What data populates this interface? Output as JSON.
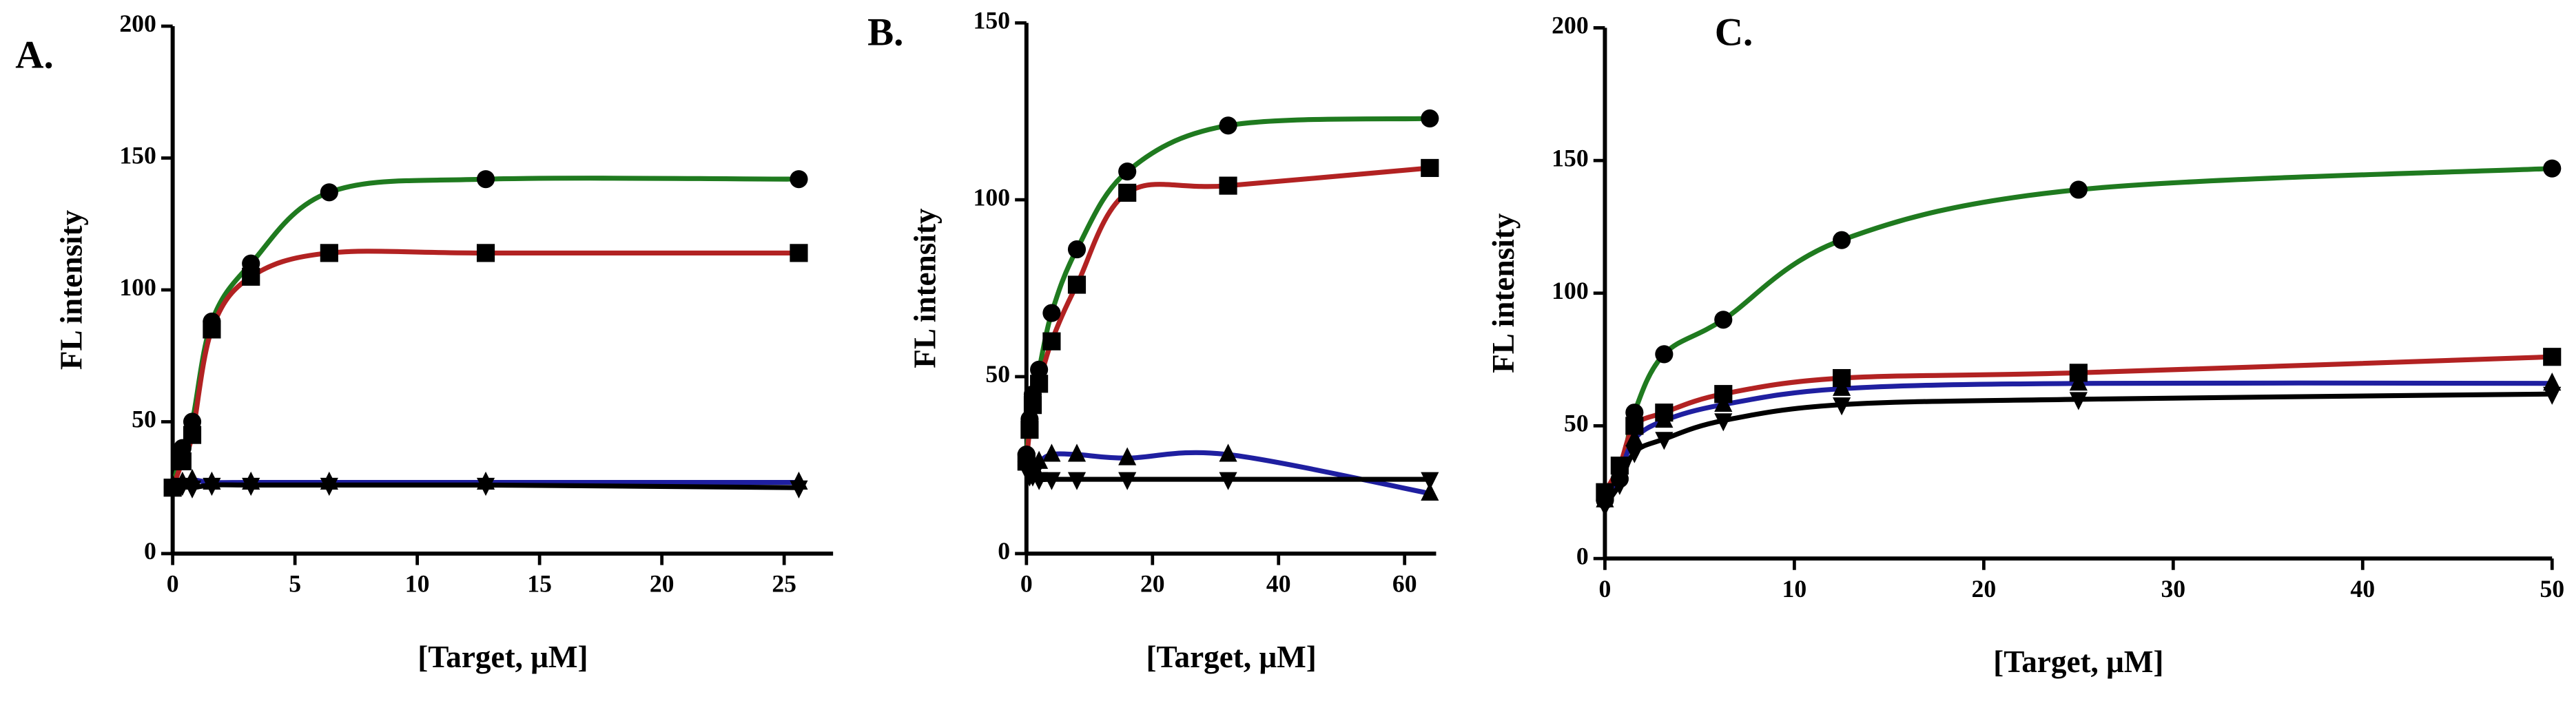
{
  "chart_data": [
    {
      "type": "line",
      "panel_label": "A.",
      "x_label": "[Target, μM]",
      "y_label": "FL intensity",
      "x": [
        0,
        0.4,
        0.8,
        1.6,
        3.2,
        6.4,
        12.8,
        25.6
      ],
      "xlim": [
        0,
        27
      ],
      "xticks": [
        0,
        5,
        10,
        15,
        20,
        25
      ],
      "ylim": [
        0,
        200
      ],
      "yticks": [
        0,
        50,
        100,
        150,
        200
      ],
      "series": [
        {
          "color": "#1f7a1f",
          "marker": "circle",
          "values": [
            25,
            40,
            50,
            88,
            110,
            137,
            142,
            142
          ]
        },
        {
          "color": "#b22222",
          "marker": "square",
          "values": [
            25,
            35,
            45,
            85,
            105,
            114,
            114,
            114
          ]
        },
        {
          "color": "#1f1fa0",
          "marker": "triangle-up",
          "values": [
            26,
            27,
            28,
            27,
            27,
            27,
            27,
            27
          ]
        },
        {
          "color": "#000000",
          "marker": "triangle-down",
          "values": [
            25,
            26,
            25,
            26,
            26,
            26,
            26,
            25
          ]
        }
      ]
    },
    {
      "type": "line",
      "panel_label": "B.",
      "x_label": "[Target, μM]",
      "y_label": "FL intensity",
      "x": [
        0,
        0.5,
        1,
        2,
        4,
        8,
        16,
        32,
        64
      ],
      "xlim": [
        0,
        65
      ],
      "xticks": [
        0,
        20,
        40,
        60
      ],
      "ylim": [
        0,
        150
      ],
      "yticks": [
        0,
        50,
        100,
        150
      ],
      "series": [
        {
          "color": "#1f7a1f",
          "marker": "circle",
          "values": [
            28,
            38,
            45,
            52,
            68,
            86,
            108,
            121,
            123
          ]
        },
        {
          "color": "#b22222",
          "marker": "square",
          "values": [
            26,
            35,
            42,
            48,
            60,
            76,
            102,
            104,
            109
          ]
        },
        {
          "color": "#1f1fa0",
          "marker": "triangle-up",
          "values": [
            27,
            26,
            25,
            26,
            28,
            28,
            27,
            28,
            17
          ]
        },
        {
          "color": "#000000",
          "marker": "triangle-down",
          "values": [
            24,
            22,
            22,
            21,
            21,
            21,
            21,
            21,
            21
          ]
        }
      ]
    },
    {
      "type": "line",
      "panel_label": "C.",
      "x_label": "[Target, μM]",
      "y_label": "FL intensity",
      "x": [
        0,
        0.78,
        1.56,
        3.125,
        6.25,
        12.5,
        25,
        50
      ],
      "xlim": [
        0,
        50
      ],
      "xticks": [
        0,
        10,
        20,
        30,
        40,
        50
      ],
      "ylim": [
        0,
        200
      ],
      "yticks": [
        0,
        50,
        100,
        150,
        200
      ],
      "series": [
        {
          "color": "#1f7a1f",
          "marker": "circle",
          "values": [
            22,
            30,
            55,
            77,
            90,
            120,
            139,
            147
          ]
        },
        {
          "color": "#b22222",
          "marker": "square",
          "values": [
            25,
            35,
            50,
            55,
            62,
            68,
            70,
            76
          ]
        },
        {
          "color": "#1f1fa0",
          "marker": "triangle-up",
          "values": [
            22,
            32,
            45,
            52,
            58,
            64,
            66,
            66
          ]
        },
        {
          "color": "#000000",
          "marker": "triangle-down",
          "values": [
            20,
            28,
            40,
            45,
            52,
            58,
            60,
            62
          ]
        }
      ]
    }
  ]
}
